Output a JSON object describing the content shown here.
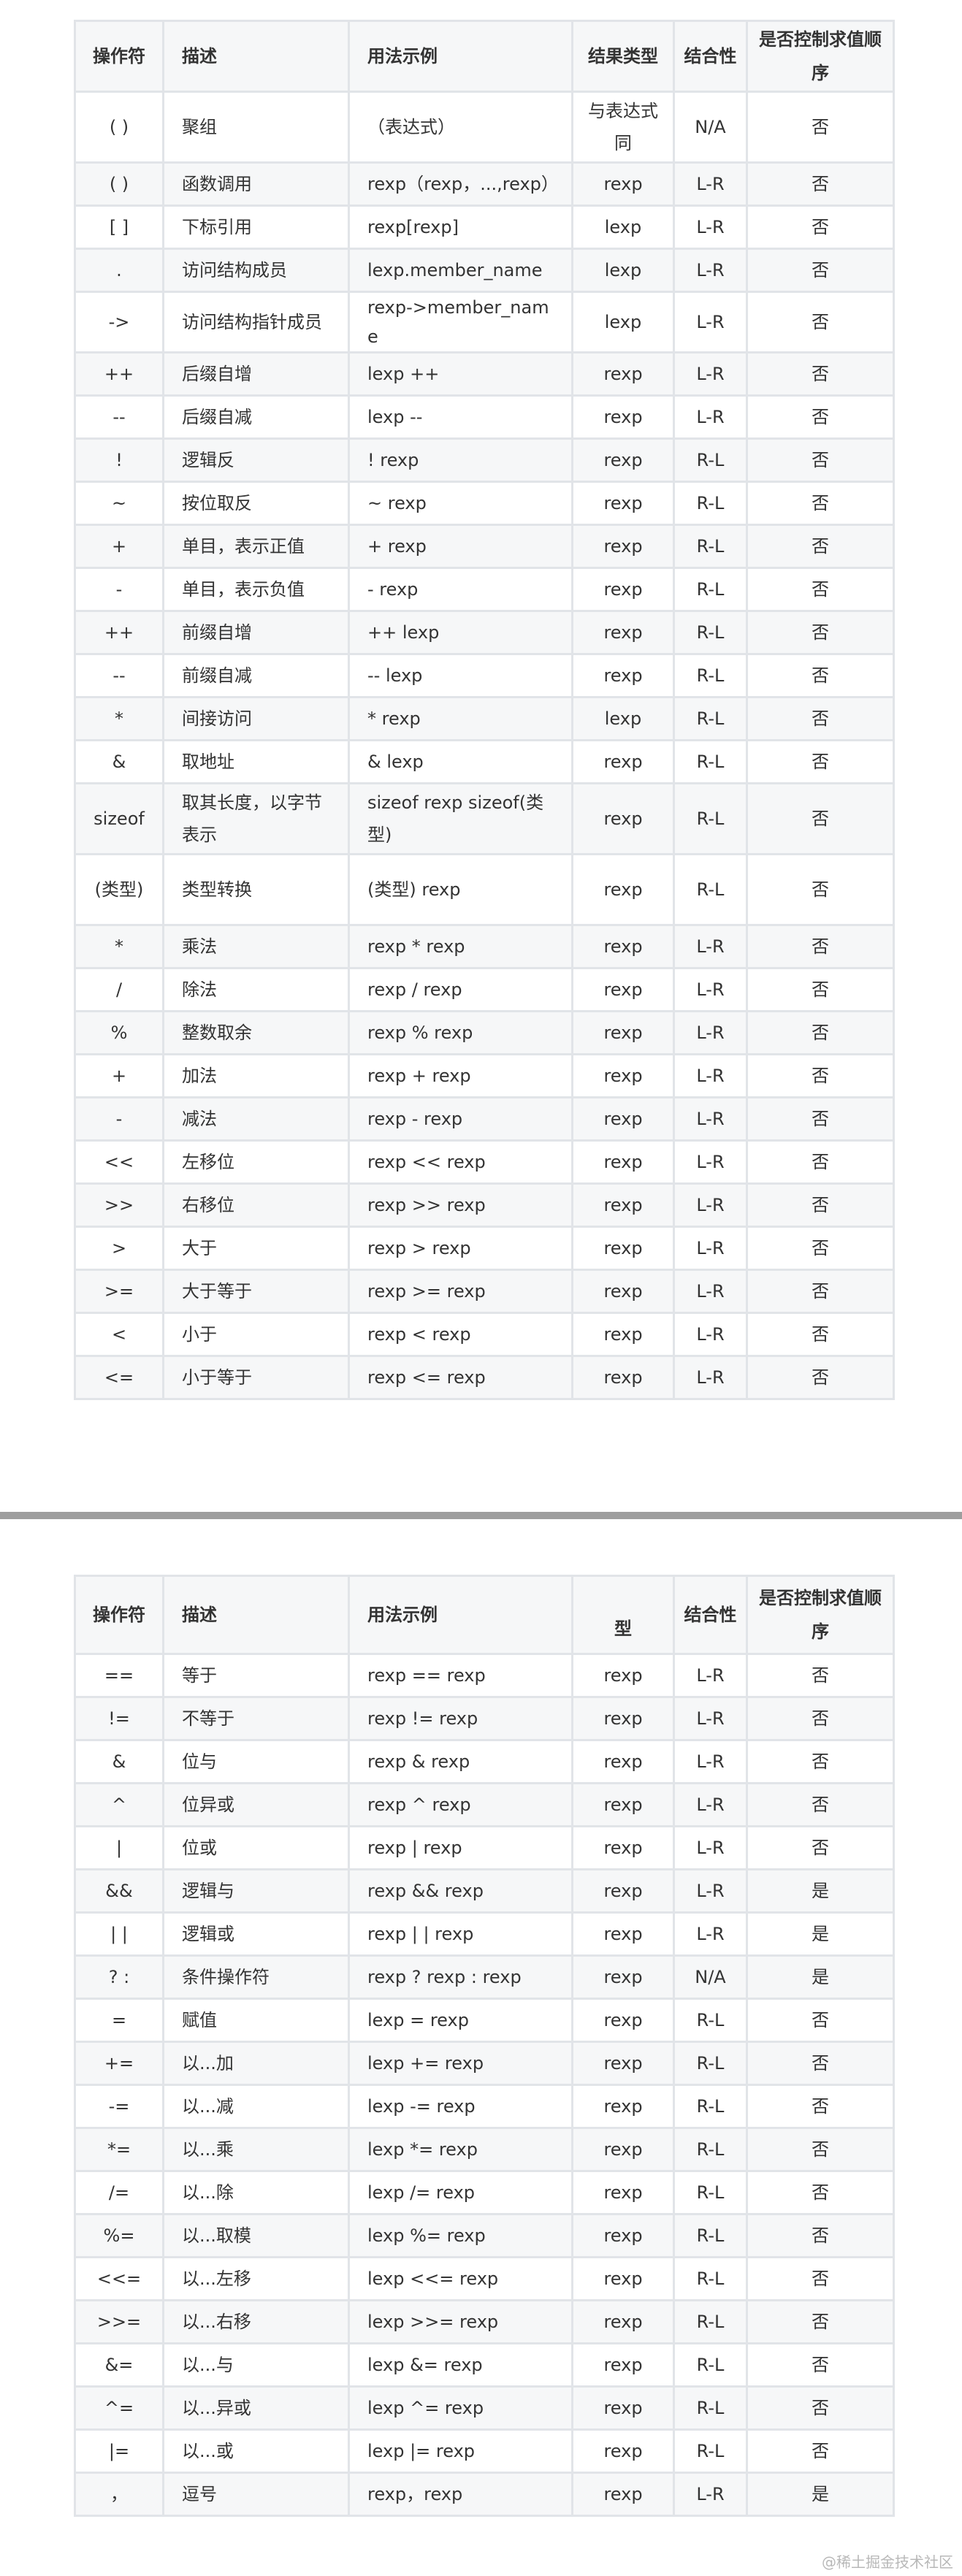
{
  "table1": {
    "headers": [
      "操作符",
      "描述",
      "用法示例",
      "结果类型",
      "结合性",
      "是否控制求值顺序"
    ],
    "rows": [
      [
        "( )",
        "聚组",
        "（表达式）",
        "与表达式同",
        "N/A",
        "否"
      ],
      [
        "( )",
        "函数调用",
        "rexp（rexp，...,rexp）",
        "rexp",
        "L-R",
        "否"
      ],
      [
        "[ ]",
        "下标引用",
        "rexp[rexp]",
        "lexp",
        "L-R",
        "否"
      ],
      [
        ".",
        "访问结构成员",
        "lexp.member_name",
        "lexp",
        "L-R",
        "否"
      ],
      [
        "->",
        "访问结构指针成员",
        "rexp->member_name",
        "lexp",
        "L-R",
        "否"
      ],
      [
        "++",
        "后缀自增",
        "lexp ++",
        "rexp",
        "L-R",
        "否"
      ],
      [
        "--",
        "后缀自减",
        "lexp --",
        "rexp",
        "L-R",
        "否"
      ],
      [
        "!",
        "逻辑反",
        "! rexp",
        "rexp",
        "R-L",
        "否"
      ],
      [
        "~",
        "按位取反",
        "~ rexp",
        "rexp",
        "R-L",
        "否"
      ],
      [
        "+",
        "单目，表示正值",
        "+ rexp",
        "rexp",
        "R-L",
        "否"
      ],
      [
        "-",
        "单目，表示负值",
        "- rexp",
        "rexp",
        "R-L",
        "否"
      ],
      [
        "++",
        "前缀自增",
        "++ lexp",
        "rexp",
        "R-L",
        "否"
      ],
      [
        "--",
        "前缀自减",
        "-- lexp",
        "rexp",
        "R-L",
        "否"
      ],
      [
        "*",
        "间接访问",
        "* rexp",
        "lexp",
        "R-L",
        "否"
      ],
      [
        "&",
        "取地址",
        "& lexp",
        "rexp",
        "R-L",
        "否"
      ],
      [
        "sizeof",
        "取其长度，以字节表示",
        "sizeof rexp sizeof(类型)",
        "rexp",
        "R-L",
        "否"
      ],
      [
        "(类型)",
        "类型转换",
        "(类型) rexp",
        "rexp",
        "R-L",
        "否"
      ],
      [
        "*",
        "乘法",
        "rexp * rexp",
        "rexp",
        "L-R",
        "否"
      ],
      [
        "/",
        "除法",
        "rexp / rexp",
        "rexp",
        "L-R",
        "否"
      ],
      [
        "%",
        "整数取余",
        "rexp % rexp",
        "rexp",
        "L-R",
        "否"
      ],
      [
        "+",
        "加法",
        "rexp + rexp",
        "rexp",
        "L-R",
        "否"
      ],
      [
        "-",
        "减法",
        "rexp - rexp",
        "rexp",
        "L-R",
        "否"
      ],
      [
        "<<",
        "左移位",
        "rexp << rexp",
        "rexp",
        "L-R",
        "否"
      ],
      [
        ">>",
        "右移位",
        "rexp >> rexp",
        "rexp",
        "L-R",
        "否"
      ],
      [
        ">",
        "大于",
        "rexp > rexp",
        "rexp",
        "L-R",
        "否"
      ],
      [
        ">=",
        "大于等于",
        "rexp >= rexp",
        "rexp",
        "L-R",
        "否"
      ],
      [
        "<",
        "小于",
        "rexp < rexp",
        "rexp",
        "L-R",
        "否"
      ],
      [
        "<=",
        "小于等于",
        "rexp <= rexp",
        "rexp",
        "L-R",
        "否"
      ]
    ]
  },
  "table2": {
    "headers": [
      "操作符",
      "描述",
      "用法示例",
      "型",
      "结合性",
      "是否控制求值顺序"
    ],
    "rows": [
      [
        "==",
        "等于",
        "rexp == rexp",
        "rexp",
        "L-R",
        "否"
      ],
      [
        "!=",
        "不等于",
        "rexp != rexp",
        "rexp",
        "L-R",
        "否"
      ],
      [
        "&",
        "位与",
        "rexp & rexp",
        "rexp",
        "L-R",
        "否"
      ],
      [
        "^",
        "位异或",
        "rexp ^ rexp",
        "rexp",
        "L-R",
        "否"
      ],
      [
        "|",
        "位或",
        "rexp | rexp",
        "rexp",
        "L-R",
        "否"
      ],
      [
        "&&",
        "逻辑与",
        "rexp && rexp",
        "rexp",
        "L-R",
        "是"
      ],
      [
        "| |",
        "逻辑或",
        "rexp | | rexp",
        "rexp",
        "L-R",
        "是"
      ],
      [
        "? :",
        "条件操作符",
        "rexp ? rexp : rexp",
        "rexp",
        "N/A",
        "是"
      ],
      [
        "=",
        "赋值",
        "lexp = rexp",
        "rexp",
        "R-L",
        "否"
      ],
      [
        "+=",
        "以...加",
        "lexp += rexp",
        "rexp",
        "R-L",
        "否"
      ],
      [
        "-=",
        "以...减",
        "lexp -= rexp",
        "rexp",
        "R-L",
        "否"
      ],
      [
        "*=",
        "以...乘",
        "lexp *= rexp",
        "rexp",
        "R-L",
        "否"
      ],
      [
        "/=",
        "以...除",
        "lexp /= rexp",
        "rexp",
        "R-L",
        "否"
      ],
      [
        "%=",
        "以...取模",
        "lexp %= rexp",
        "rexp",
        "R-L",
        "否"
      ],
      [
        "<<=",
        "以...左移",
        "lexp <<= rexp",
        "rexp",
        "R-L",
        "否"
      ],
      [
        ">>=",
        "以...右移",
        "lexp >>= rexp",
        "rexp",
        "R-L",
        "否"
      ],
      [
        "&=",
        "以...与",
        "lexp &= rexp",
        "rexp",
        "R-L",
        "否"
      ],
      [
        "^=",
        "以...异或",
        "lexp ^= rexp",
        "rexp",
        "R-L",
        "否"
      ],
      [
        "|=",
        "以...或",
        "lexp |= rexp",
        "rexp",
        "R-L",
        "否"
      ],
      [
        "，",
        "逗号",
        "rexp，rexp",
        "rexp",
        "L-R",
        "是"
      ]
    ]
  },
  "watermark": "@稀土掘金技术社区",
  "colors": {
    "border": "#e1e4e8",
    "stripe": "#f6f7f8",
    "separator": "#9e9e9e",
    "text": "#333333"
  }
}
